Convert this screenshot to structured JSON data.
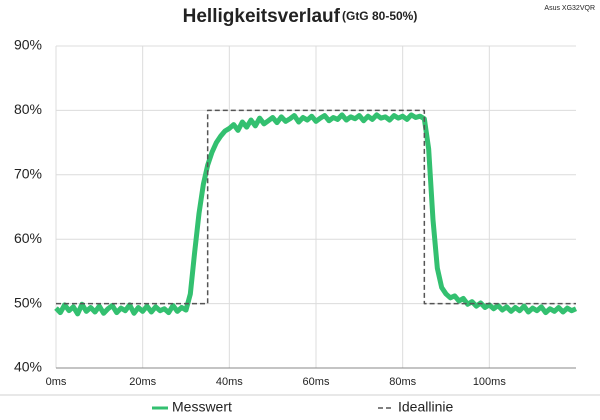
{
  "chart_data": {
    "type": "line",
    "title": "Helligkeitsverlauf",
    "subtitle": "(GtG 80-50%)",
    "annotation": "Asus XG32VQR",
    "xlim": [
      0,
      120
    ],
    "ylim": [
      40,
      90
    ],
    "xticks": [
      {
        "value": 0,
        "label": "0ms"
      },
      {
        "value": 20,
        "label": "20ms"
      },
      {
        "value": 40,
        "label": "40ms"
      },
      {
        "value": 60,
        "label": "60ms"
      },
      {
        "value": 80,
        "label": "80ms"
      },
      {
        "value": 100,
        "label": "100ms"
      }
    ],
    "yticks": [
      {
        "value": 40,
        "label": "40%"
      },
      {
        "value": 50,
        "label": "50%"
      },
      {
        "value": 60,
        "label": "60%"
      },
      {
        "value": 70,
        "label": "70%"
      },
      {
        "value": 80,
        "label": "80%"
      },
      {
        "value": 90,
        "label": "90%"
      }
    ],
    "grid": true,
    "legend": "bottom",
    "series": [
      {
        "name": "Messwert",
        "color": "#33c070",
        "style": "solid",
        "x": [
          0,
          1,
          2,
          3,
          4,
          5,
          6,
          7,
          8,
          9,
          10,
          11,
          12,
          13,
          14,
          15,
          16,
          17,
          18,
          19,
          20,
          21,
          22,
          23,
          24,
          25,
          26,
          27,
          28,
          29,
          30,
          31,
          32,
          33,
          34,
          35,
          36,
          37,
          38,
          39,
          40,
          41,
          42,
          43,
          44,
          45,
          46,
          47,
          48,
          49,
          50,
          51,
          52,
          53,
          54,
          55,
          56,
          57,
          58,
          59,
          60,
          61,
          62,
          63,
          64,
          65,
          66,
          67,
          68,
          69,
          70,
          71,
          72,
          73,
          74,
          75,
          76,
          77,
          78,
          79,
          80,
          81,
          82,
          83,
          84,
          85,
          86,
          87,
          88,
          89,
          90,
          91,
          92,
          93,
          94,
          95,
          96,
          97,
          98,
          99,
          100,
          101,
          102,
          103,
          104,
          105,
          106,
          107,
          108,
          109,
          110,
          111,
          112,
          113,
          114,
          115,
          116,
          117,
          118,
          119,
          120
        ],
        "values": [
          49.3,
          48.6,
          49.8,
          48.9,
          49.5,
          48.4,
          49.9,
          48.8,
          49.4,
          48.7,
          49.6,
          48.5,
          49.2,
          49.7,
          48.6,
          49.3,
          48.9,
          49.8,
          48.5,
          49.4,
          48.8,
          49.6,
          48.7,
          49.5,
          48.9,
          49.2,
          48.6,
          49.7,
          48.8,
          49.4,
          49.0,
          51.5,
          58,
          64,
          68.5,
          71.5,
          73.5,
          75,
          76,
          76.8,
          77.2,
          77.8,
          76.9,
          78.2,
          77.4,
          78.5,
          77.6,
          78.8,
          77.9,
          78.4,
          78.9,
          78.1,
          79.0,
          78.3,
          78.7,
          79.2,
          78.2,
          78.9,
          78.5,
          79.1,
          78.3,
          78.8,
          79.2,
          78.4,
          78.9,
          78.6,
          79.3,
          78.5,
          79.0,
          78.7,
          79.2,
          78.4,
          79.1,
          78.6,
          79.3,
          78.8,
          79.0,
          78.5,
          79.2,
          78.8,
          79.1,
          78.6,
          79.3,
          78.9,
          79.1,
          78.7,
          74,
          63,
          55.5,
          52.5,
          51.5,
          50.9,
          51.2,
          50.4,
          50.8,
          49.9,
          50.3,
          49.6,
          50.1,
          49.4,
          49.8,
          49.2,
          49.7,
          49.0,
          49.5,
          48.8,
          49.4,
          48.9,
          49.6,
          48.7,
          49.3,
          48.9,
          49.5,
          48.6,
          49.2,
          48.8,
          49.4,
          48.7,
          49.3,
          48.9,
          49.2
        ]
      },
      {
        "name": "Ideallinie",
        "color": "#555555",
        "style": "dashed",
        "x": [
          0,
          35,
          35,
          85,
          85,
          120
        ],
        "values": [
          50,
          50,
          80,
          80,
          50,
          50
        ]
      }
    ]
  }
}
